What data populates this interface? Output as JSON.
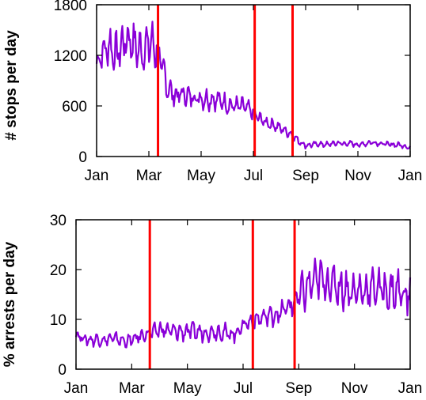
{
  "chart_data": [
    {
      "type": "line",
      "ylabel": "# stops per day",
      "xlabel": "",
      "x_tick_labels": [
        "Jan",
        "Mar",
        "May",
        "Jul",
        "Sep",
        "Nov",
        "Jan"
      ],
      "y_ticks": [
        0,
        600,
        1200,
        1800
      ],
      "y_tick_labels": [
        "0",
        "600",
        "1200",
        "1800"
      ],
      "ylim": [
        0,
        1800
      ],
      "xlim": [
        0,
        12
      ],
      "event_lines_x_months": [
        2.35,
        6.05,
        7.5
      ],
      "series": [
        {
          "color": "#8a00d8",
          "x": [
            0.0,
            0.25,
            0.5,
            0.75,
            1.0,
            1.25,
            1.5,
            1.75,
            2.0,
            2.25,
            2.5,
            2.75,
            3.0,
            3.25,
            3.5,
            3.75,
            4.0,
            4.25,
            4.5,
            4.75,
            5.0,
            5.25,
            5.5,
            5.75,
            6.0,
            6.25,
            6.5,
            6.75,
            7.0,
            7.25,
            7.5,
            7.75,
            8.0,
            8.25,
            8.5,
            8.75,
            9.0,
            9.25,
            9.5,
            9.75,
            10.0,
            10.25,
            10.5,
            10.75,
            11.0,
            11.25,
            11.5,
            11.75,
            12.0
          ],
          "values": [
            1100,
            1250,
            1320,
            1200,
            1350,
            1400,
            1300,
            1250,
            1350,
            1300,
            1050,
            800,
            720,
            740,
            720,
            700,
            690,
            680,
            680,
            660,
            620,
            600,
            600,
            580,
            510,
            450,
            400,
            380,
            340,
            300,
            250,
            180,
            130,
            140,
            150,
            140,
            150,
            160,
            150,
            155,
            140,
            150,
            170,
            160,
            150,
            140,
            140,
            130,
            100
          ],
          "amplitude": [
            150,
            220,
            300,
            300,
            300,
            300,
            300,
            300,
            330,
            330,
            280,
            200,
            150,
            150,
            150,
            150,
            150,
            150,
            150,
            140,
            140,
            130,
            130,
            120,
            100,
            90,
            90,
            80,
            80,
            70,
            60,
            50,
            40,
            40,
            40,
            40,
            40,
            40,
            40,
            40,
            40,
            40,
            40,
            40,
            40,
            40,
            40,
            40,
            30
          ]
        }
      ]
    },
    {
      "type": "line",
      "ylabel": "% arrests per day",
      "xlabel": "",
      "x_tick_labels": [
        "Jan",
        "Mar",
        "May",
        "Jul",
        "Sep",
        "Nov",
        "Jan"
      ],
      "y_ticks": [
        0,
        10,
        20,
        30
      ],
      "y_tick_labels": [
        "0",
        "10",
        "20",
        "30"
      ],
      "ylim": [
        0,
        30
      ],
      "xlim": [
        0,
        12
      ],
      "event_lines_x_months": [
        2.65,
        6.35,
        7.85
      ],
      "series": [
        {
          "color": "#8a00d8",
          "x": [
            0.0,
            0.25,
            0.5,
            0.75,
            1.0,
            1.25,
            1.5,
            1.75,
            2.0,
            2.25,
            2.5,
            2.75,
            3.0,
            3.25,
            3.5,
            3.75,
            4.0,
            4.25,
            4.5,
            4.75,
            5.0,
            5.25,
            5.5,
            5.75,
            6.0,
            6.25,
            6.5,
            6.75,
            7.0,
            7.25,
            7.5,
            7.75,
            8.0,
            8.25,
            8.5,
            8.75,
            9.0,
            9.25,
            9.5,
            9.75,
            10.0,
            10.25,
            10.5,
            10.75,
            11.0,
            11.25,
            11.5,
            11.75,
            12.0
          ],
          "values": [
            7,
            6.2,
            5.8,
            6.0,
            5.8,
            6.2,
            6.0,
            5.6,
            5.8,
            6.5,
            7.0,
            7.3,
            8.0,
            7.8,
            7.5,
            7.5,
            7.6,
            7.5,
            7.4,
            7.5,
            7.6,
            7.5,
            7.0,
            7.2,
            9.0,
            9.5,
            10.0,
            10.5,
            10.8,
            11.0,
            12.0,
            13.0,
            14.5,
            16.0,
            17.5,
            18.0,
            17.5,
            17.0,
            16.5,
            16.0,
            15.5,
            15.8,
            16.0,
            16.5,
            16.0,
            15.5,
            16.0,
            15.0,
            15.0
          ],
          "amplitude": [
            1.2,
            1.2,
            1.5,
            1.5,
            1.5,
            1.5,
            1.5,
            1.5,
            1.5,
            1.5,
            1.5,
            1.8,
            2.2,
            2.2,
            2.2,
            2.2,
            2.2,
            2.2,
            2.2,
            2.2,
            2.2,
            2.2,
            2.2,
            2.2,
            2.0,
            2.0,
            2.0,
            2.2,
            2.5,
            2.5,
            3.0,
            3.5,
            4.5,
            5.0,
            5.0,
            5.0,
            5.0,
            5.0,
            5.0,
            5.0,
            4.5,
            4.5,
            4.5,
            4.5,
            4.5,
            5.0,
            5.5,
            5.5,
            5.0
          ]
        }
      ]
    }
  ]
}
